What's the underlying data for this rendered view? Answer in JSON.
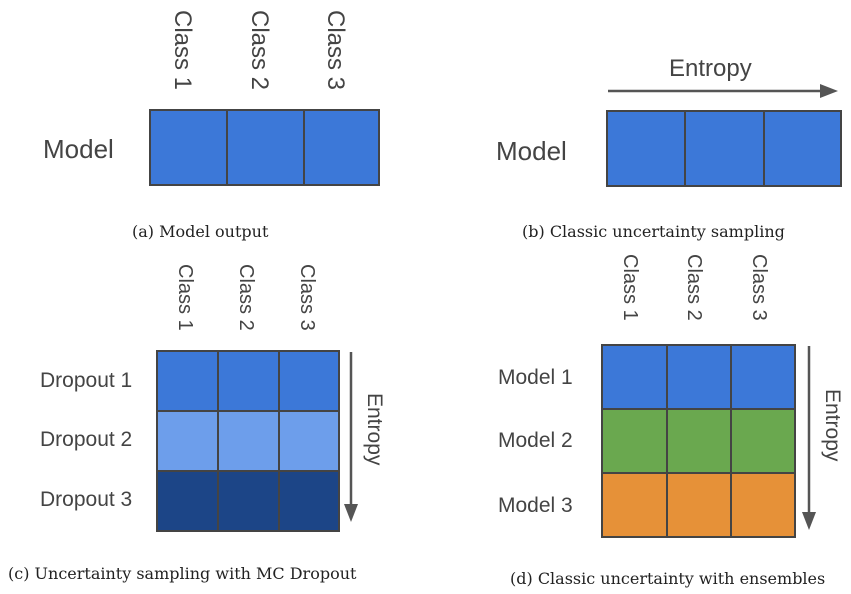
{
  "colors": {
    "blue": "#3c78d8",
    "light_blue": "#6d9eeb",
    "dark_blue": "#1c4587",
    "green": "#6aa84f",
    "orange": "#e69138",
    "border": "#444444",
    "arrow": "#555555"
  },
  "panel_a": {
    "class_labels": [
      "Class 1",
      "Class 2",
      "Class 3"
    ],
    "row_label": "Model",
    "caption": "(a) Model output"
  },
  "panel_b": {
    "arrow_label": "Entropy",
    "row_label": "Model",
    "caption": "(b) Classic uncertainty sampling"
  },
  "panel_c": {
    "class_labels": [
      "Class 1",
      "Class 2",
      "Class 3"
    ],
    "row_labels": [
      "Dropout 1",
      "Dropout 2",
      "Dropout 3"
    ],
    "arrow_label": "Entropy",
    "caption": "(c) Uncertainty sampling with MC Dropout"
  },
  "panel_d": {
    "class_labels": [
      "Class 1",
      "Class 2",
      "Class 3"
    ],
    "row_labels": [
      "Model 1",
      "Model 2",
      "Model 3"
    ],
    "arrow_label": "Entropy",
    "caption": "(d) Classic uncertainty with ensembles"
  }
}
